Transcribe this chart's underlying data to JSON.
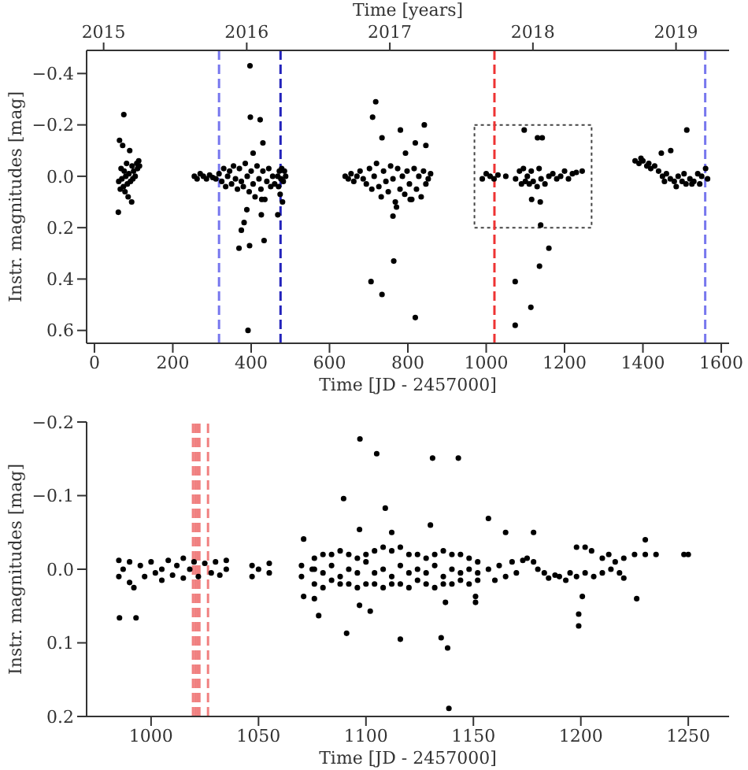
{
  "chart_data": [
    {
      "type": "scatter",
      "x2label": "Time [years]",
      "xlabel": "Time [JD - 2457000]",
      "ylabel": "Instr. magnitudes [mag]",
      "marker": "circle",
      "xlim": [
        -20,
        1620
      ],
      "xticks": [
        0,
        200,
        400,
        600,
        800,
        1000,
        1200,
        1400,
        1600
      ],
      "x2lim": [
        2014.881,
        2019.371
      ],
      "x2ticks": [
        2015,
        2016,
        2017,
        2018,
        2019
      ],
      "ylim": [
        0.65,
        -0.49
      ],
      "yticks": [
        {
          "value": -0.4,
          "label": "−0.4"
        },
        {
          "value": -0.2,
          "label": "−0.2"
        },
        {
          "value": 0,
          "label": "0.0"
        },
        {
          "value": 0.2,
          "label": "0.2"
        },
        {
          "value": 0.4,
          "label": "0.4"
        },
        {
          "value": 0.6,
          "label": "0.6"
        }
      ],
      "ref_lines": [
        {
          "axis": "x",
          "value": 318,
          "color": "#7777ee",
          "line_style": "dashed"
        },
        {
          "axis": "x",
          "value": 475,
          "color": "#2222bb",
          "line_style": "dashed"
        },
        {
          "axis": "x",
          "value": 1021,
          "color": "#ee3333",
          "line_style": "dashed"
        },
        {
          "axis": "x",
          "value": 1559,
          "color": "#7777ee",
          "line_style": "dashed"
        }
      ],
      "series": [
        {
          "color": "#000000",
          "x": [
            62,
            64,
            66,
            68,
            70,
            72,
            74,
            75,
            76,
            78,
            80,
            82,
            84,
            86,
            88,
            90,
            92,
            95,
            61,
            96,
            98,
            100,
            104,
            108,
            110,
            113,
            115,
            255,
            262,
            270,
            278,
            286,
            294,
            302,
            310,
            318,
            325,
            330,
            335,
            340,
            345,
            350,
            355,
            360,
            365,
            370,
            375,
            380,
            385,
            390,
            395,
            400,
            405,
            410,
            415,
            420,
            425,
            430,
            435,
            440,
            445,
            450,
            455,
            460,
            397,
            398,
            423,
            430,
            405,
            369,
            396,
            433,
            375,
            382,
            389,
            426,
            427,
            392,
            468,
            468,
            470,
            472,
            474,
            476,
            478,
            480,
            482,
            485,
            488,
            640,
            648,
            655,
            662,
            670,
            678,
            686,
            694,
            702,
            708,
            714,
            720,
            726,
            732,
            738,
            744,
            750,
            756,
            762,
            768,
            774,
            780,
            786,
            792,
            798,
            804,
            810,
            816,
            822,
            828,
            834,
            840,
            846,
            852,
            858,
            718,
            710,
            734,
            781,
            819,
            846,
            842,
            794,
            764,
            706,
            734,
            819,
            762,
            771,
            806,
            990,
            1000,
            1010,
            1020,
            1030,
            1050,
            1075,
            1085,
            1090,
            1095,
            1100,
            1105,
            1110,
            1115,
            1120,
            1130,
            1135,
            1140,
            1150,
            1160,
            1170,
            1180,
            1190,
            1200,
            1210,
            1220,
            1230,
            1245,
            1097,
            1131,
            1143,
            1139,
            1138,
            1116,
            1074,
            1114,
            1074,
            1136,
            1160,
            1380,
            1390,
            1400,
            1410,
            1420,
            1430,
            1440,
            1450,
            1460,
            1470,
            1480,
            1490,
            1500,
            1510,
            1520,
            1530,
            1540,
            1550,
            1560,
            1565,
            1395,
            1415,
            1455,
            1485,
            1505,
            1525,
            1545,
            1512,
            1447,
            1471
          ],
          "values": [
            0.02,
            -0.14,
            0.05,
            -0.03,
            0.01,
            -0.12,
            0.04,
            -0.24,
            -0.02,
            0.06,
            0,
            -0.05,
            0.03,
            0.08,
            -0.01,
            -0.1,
            0.02,
            0.1,
            0.14,
            -0.04,
            0.01,
            -0.02,
            0,
            -0.05,
            -0.03,
            -0.06,
            -0.04,
            0,
            0.01,
            -0.01,
            0,
            0.01,
            -0.005,
            0.005,
            0.01,
            -0.01,
            0.02,
            -0.03,
            0.04,
            0,
            -0.02,
            0.03,
            -0.04,
            0.01,
            0.05,
            -0.03,
            0.02,
            0.04,
            -0.05,
            0,
            0.06,
            -0.02,
            0.03,
            0.08,
            -0.04,
            0.01,
            0.05,
            -0.02,
            0.09,
            0.02,
            -0.03,
            0.04,
            0,
            0.03,
            -0.43,
            -0.23,
            -0.22,
            -0.13,
            -0.09,
            0.28,
            0.27,
            0.25,
            0.21,
            0.18,
            0.13,
            0.15,
            0.09,
            0.6,
            0.15,
            0,
            0.04,
            -0.02,
            0.07,
            0.01,
            -0.03,
            0.1,
            0.02,
            -0.02,
            0,
            0,
            0.01,
            -0.01,
            0.02,
            0,
            -0.02,
            0.01,
            0.03,
            -0.03,
            0.05,
            0,
            -0.05,
            0.04,
            0.08,
            -0.02,
            0.02,
            0.06,
            -0.04,
            0.01,
            0.1,
            -0.03,
            0.05,
            0,
            0.07,
            -0.02,
            0.03,
            0.09,
            -0.03,
            0.05,
            0,
            0.08,
            -0.02,
            0.03,
            0.01,
            -0.01,
            -0.29,
            -0.23,
            -0.15,
            -0.18,
            -0.13,
            -0.12,
            -0.2,
            -0.09,
            0.33,
            0.41,
            0.46,
            0.55,
            0.155,
            0.12,
            0.09,
            0.01,
            -0.01,
            0,
            0.01,
            -0.005,
            0,
            0.01,
            -0.02,
            0.03,
            -0.03,
            0.02,
            0,
            0.03,
            -0.02,
            0.02,
            0.04,
            -0.03,
            0.01,
            0.03,
            0,
            -0.01,
            0.01,
            0,
            -0.02,
            0.01,
            -0.01,
            -0.015,
            -0.02,
            -0.18,
            -0.15,
            -0.15,
            0.19,
            0.1,
            0.09,
            0.58,
            0.51,
            0.41,
            0.35,
            0.28,
            -0.06,
            -0.05,
            -0.06,
            -0.04,
            -0.03,
            -0.04,
            -0.02,
            0,
            -0.01,
            0.01,
            0.02,
            0,
            0.02,
            0.03,
            0.01,
            0.02,
            -0.01,
            0,
            -0.03,
            0.01,
            -0.07,
            -0.05,
            0.02,
            0.04,
            -0.01,
            0.03,
            0.03,
            -0.18,
            -0.09,
            -0.1
          ]
        }
      ]
    },
    {
      "type": "scatter",
      "xlabel": "Time [JD - 2457000]",
      "ylabel": "Instr. magnitudes [mag]",
      "marker": "circle",
      "xlim": [
        970,
        1269
      ],
      "xticks": [
        1000,
        1050,
        1100,
        1150,
        1200,
        1250
      ],
      "ylim": [
        0.2,
        -0.2
      ],
      "yticks": [
        {
          "value": -0.2,
          "label": "−0.2"
        },
        {
          "value": -0.1,
          "label": "−0.1"
        },
        {
          "value": 0,
          "label": "0.0"
        },
        {
          "value": 0.1,
          "label": "0.1"
        },
        {
          "value": 0.2,
          "label": "0.2"
        }
      ],
      "ref_lines": [
        {
          "axis": "x",
          "value": 1019.5,
          "color": "#f08080",
          "line_style": "dashed"
        },
        {
          "axis": "x",
          "value": 1020.5,
          "color": "#f08080",
          "line_style": "dashed"
        },
        {
          "axis": "x",
          "value": 1021.5,
          "color": "#f08080",
          "line_style": "dashed"
        },
        {
          "axis": "x",
          "value": 1022.5,
          "color": "#f08080",
          "line_style": "dashed"
        },
        {
          "axis": "x",
          "value": 1026.5,
          "color": "#f08080",
          "line_style": "dashed"
        }
      ],
      "series": [
        {
          "color": "#000000",
          "x": [
            985,
            985,
            987,
            990,
            990,
            992,
            995,
            997,
            1000,
            1002,
            1005,
            1005,
            1008,
            1010,
            1012,
            1015,
            1015,
            1018,
            1020,
            1022,
            1025,
            1028,
            1030,
            1032,
            1035,
            1035,
            1047,
            1047,
            1050,
            1055,
            1055,
            1070,
            1070,
            1075,
            1076,
            1076,
            1076,
            1080,
            1080,
            1080,
            1084,
            1084,
            1084,
            1088,
            1088,
            1088,
            1092,
            1092,
            1092,
            1096,
            1096,
            1096,
            1100,
            1100,
            1100,
            1104,
            1104,
            1104,
            1108,
            1108,
            1108,
            1112,
            1112,
            1112,
            1116,
            1116,
            1116,
            1120,
            1120,
            1120,
            1124,
            1124,
            1124,
            1128,
            1128,
            1128,
            1132,
            1132,
            1132,
            1136,
            1136,
            1136,
            1140,
            1140,
            1140,
            1144,
            1144,
            1144,
            1148,
            1148,
            1148,
            1152,
            1152,
            1152,
            1157,
            1160,
            1162,
            1165,
            1168,
            1170,
            1173,
            1175,
            1178,
            1180,
            1183,
            1185,
            1188,
            1190,
            1193,
            1195,
            1198,
            1202,
            1205,
            1210,
            1213,
            1216,
            1220,
            1225,
            1230,
            1235,
            1198,
            1202,
            1206,
            1210,
            1214,
            1218,
            1220,
            1248,
            1250,
            1097.2,
            1105,
            1131,
            1143,
            1089.6,
            1109,
            1157,
            1071,
            1097,
            1112,
            1130,
            1165,
            1178,
            1230,
            985.3,
            1091,
            1116,
            1135,
            1138,
            1138.6,
            1078,
            1102,
            1199,
            1199,
            1226,
            1200.7,
            1071,
            1076,
            1097,
            1151,
            1151,
            1137,
            993
          ],
          "values": [
            -0.012,
            0.01,
            0,
            0.018,
            -0.01,
            0.025,
            -0.005,
            0.01,
            -0.01,
            0.005,
            0,
            0.015,
            -0.012,
            0.008,
            -0.005,
            0.012,
            -0.015,
            0,
            -0.01,
            0.01,
            -0.008,
            0.005,
            -0.01,
            0.008,
            -0.012,
            0,
            -0.005,
            0.01,
            0,
            -0.008,
            0.005,
            -0.005,
            0.01,
            0,
            0.02,
            -0.015,
            0,
            0.025,
            -0.02,
            0.005,
            0.015,
            -0.02,
            -0.005,
            0.02,
            -0.025,
            0.01,
            0.02,
            -0.02,
            0,
            0.025,
            -0.015,
            0.005,
            0.02,
            -0.02,
            -0.01,
            0.02,
            -0.025,
            0.005,
            0.025,
            -0.03,
            0,
            0.02,
            -0.025,
            0.01,
            0.02,
            -0.03,
            -0.005,
            0.025,
            -0.02,
            0.005,
            0.015,
            -0.02,
            0,
            0.02,
            -0.015,
            0.005,
            0.025,
            -0.02,
            -0.005,
            0.02,
            -0.025,
            0.01,
            0.02,
            -0.02,
            0,
            0.015,
            -0.02,
            0.005,
            0.02,
            -0.015,
            0,
            0.015,
            -0.01,
            0.005,
            0,
            0.015,
            -0.005,
            0.01,
            -0.01,
            0.005,
            -0.012,
            -0.015,
            -0.01,
            0,
            0.005,
            0.012,
            0.008,
            0.01,
            0.015,
            0.005,
            -0.03,
            -0.03,
            -0.025,
            -0.015,
            -0.02,
            -0.01,
            -0.015,
            -0.02,
            -0.02,
            -0.02,
            0.01,
            0.005,
            0.01,
            0.005,
            0,
            0.005,
            0.012,
            -0.02,
            -0.02,
            -0.177,
            -0.157,
            -0.151,
            -0.151,
            -0.096,
            -0.083,
            -0.069,
            -0.041,
            -0.054,
            -0.05,
            -0.06,
            -0.05,
            -0.05,
            -0.04,
            0.066,
            0.087,
            0.095,
            0.093,
            0.107,
            0.189,
            0.063,
            0.057,
            0.061,
            0.077,
            0.04,
            0.037,
            0.037,
            0.04,
            0.049,
            0.045,
            0.037,
            0.045,
            0.066
          ]
        }
      ]
    }
  ]
}
